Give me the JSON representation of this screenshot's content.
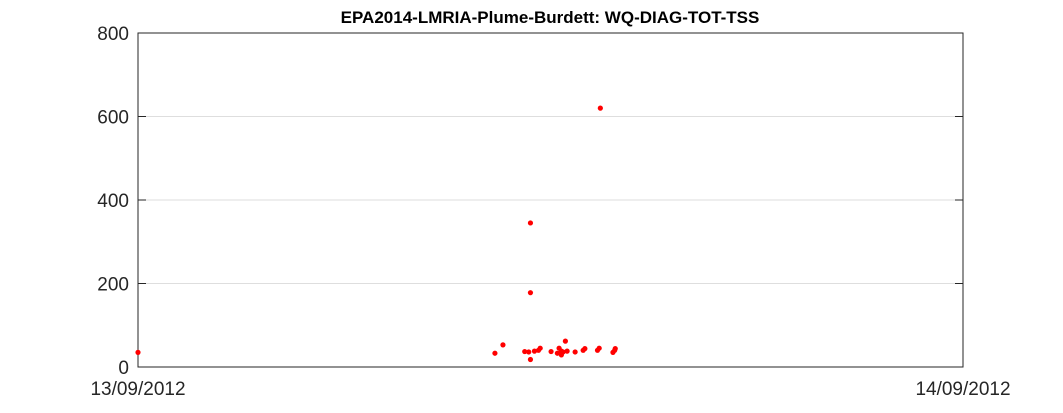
{
  "chart_data": {
    "type": "scatter",
    "title": "EPA2014-LMRIA-Plume-Burdett: WQ-DIAG-TOT-TSS",
    "xlabel": "",
    "ylabel": "",
    "xlim": [
      "13/09/2012 00:00",
      "14/09/2012 00:00"
    ],
    "ylim": [
      0,
      800
    ],
    "x_ticks": [
      "13/09/2012",
      "14/09/2012"
    ],
    "y_ticks": [
      "0",
      "200",
      "400",
      "600",
      "800"
    ],
    "grid": true,
    "marker_color": "#ff0000",
    "points": [
      {
        "x": "13/09/2012 00:00",
        "y": 35
      },
      {
        "x": "13/09/2012 10:23",
        "y": 33
      },
      {
        "x": "13/09/2012 10:37",
        "y": 53
      },
      {
        "x": "13/09/2012 11:15",
        "y": 37
      },
      {
        "x": "13/09/2012 11:22",
        "y": 36
      },
      {
        "x": "13/09/2012 11:25",
        "y": 345
      },
      {
        "x": "13/09/2012 11:25",
        "y": 178
      },
      {
        "x": "13/09/2012 11:25",
        "y": 18
      },
      {
        "x": "13/09/2012 11:32",
        "y": 38
      },
      {
        "x": "13/09/2012 11:39",
        "y": 40
      },
      {
        "x": "13/09/2012 11:42",
        "y": 45
      },
      {
        "x": "13/09/2012 12:01",
        "y": 37
      },
      {
        "x": "13/09/2012 12:12",
        "y": 33
      },
      {
        "x": "13/09/2012 12:15",
        "y": 45
      },
      {
        "x": "13/09/2012 12:19",
        "y": 38
      },
      {
        "x": "13/09/2012 12:19",
        "y": 29
      },
      {
        "x": "13/09/2012 12:22",
        "y": 36
      },
      {
        "x": "13/09/2012 12:26",
        "y": 62
      },
      {
        "x": "13/09/2012 12:29",
        "y": 38
      },
      {
        "x": "13/09/2012 12:43",
        "y": 36
      },
      {
        "x": "13/09/2012 12:57",
        "y": 40
      },
      {
        "x": "13/09/2012 13:00",
        "y": 44
      },
      {
        "x": "13/09/2012 13:22",
        "y": 40
      },
      {
        "x": "13/09/2012 13:25",
        "y": 45
      },
      {
        "x": "13/09/2012 13:27",
        "y": 620
      },
      {
        "x": "13/09/2012 13:49",
        "y": 35
      },
      {
        "x": "13/09/2012 13:52",
        "y": 40
      },
      {
        "x": "13/09/2012 13:53",
        "y": 44
      }
    ]
  }
}
